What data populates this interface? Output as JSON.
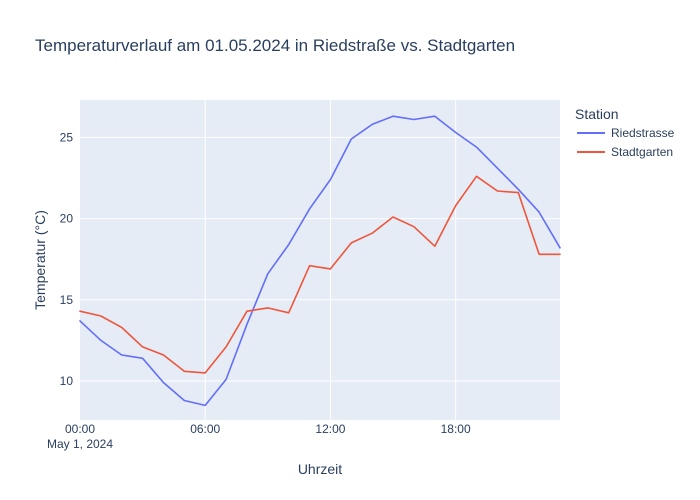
{
  "chart_data": {
    "type": "line",
    "title": "Temperaturverlauf am 01.05.2024 in Riedstraße vs. Stadtgarten",
    "xlabel": "Uhrzeit",
    "ylabel": "Temperatur (°C)",
    "x_start_label": "May 1, 2024",
    "x_tick_hours": [
      0,
      6,
      12,
      18
    ],
    "x_tick_labels": [
      "00:00",
      "06:00",
      "12:00",
      "18:00"
    ],
    "xlim_hours": [
      0,
      23
    ],
    "y_ticks": [
      10,
      15,
      20,
      25
    ],
    "ylim": [
      7.6,
      27.3
    ],
    "grid": true,
    "legend_title": "Station",
    "legend_position": "right",
    "x_hours": [
      0,
      1,
      2,
      3,
      4,
      5,
      6,
      7,
      8,
      9,
      10,
      11,
      12,
      13,
      14,
      15,
      16,
      17,
      18,
      19,
      20,
      21,
      22,
      23
    ],
    "series": [
      {
        "name": "Riedstrasse",
        "color": "#636efa",
        "values": [
          13.7,
          12.5,
          11.6,
          11.4,
          9.9,
          8.8,
          8.5,
          10.1,
          13.5,
          16.6,
          18.4,
          20.6,
          22.4,
          24.9,
          25.8,
          26.3,
          26.1,
          26.3,
          25.3,
          24.4,
          23.1,
          21.8,
          20.4,
          18.2
        ]
      },
      {
        "name": "Stadtgarten",
        "color": "#ef553b",
        "values": [
          14.3,
          14.0,
          13.3,
          12.1,
          11.6,
          10.6,
          10.5,
          12.1,
          14.3,
          14.5,
          14.2,
          17.1,
          16.9,
          18.5,
          19.1,
          20.1,
          19.5,
          18.3,
          20.8,
          22.6,
          21.7,
          21.6,
          17.8,
          17.8
        ]
      }
    ]
  }
}
